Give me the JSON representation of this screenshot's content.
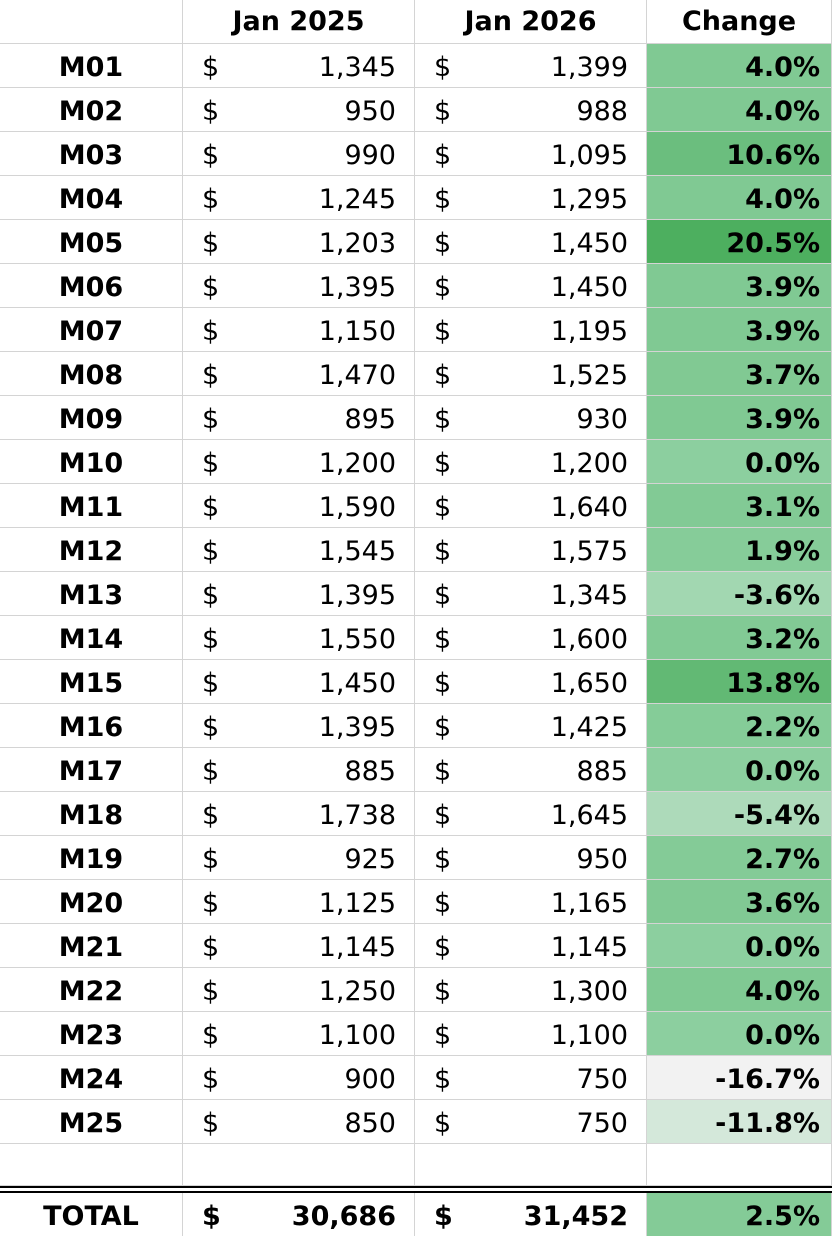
{
  "columns": {
    "name": "",
    "jan2025": "Jan 2025",
    "jan2026": "Jan 2026",
    "change": "Change"
  },
  "currency_symbol": "$",
  "rows": [
    {
      "name": "M01",
      "jan2025": "1,345",
      "jan2026": "1,399",
      "change": "4.0%",
      "change_value": 4.0
    },
    {
      "name": "M02",
      "jan2025": "950",
      "jan2026": "988",
      "change": "4.0%",
      "change_value": 4.0
    },
    {
      "name": "M03",
      "jan2025": "990",
      "jan2026": "1,095",
      "change": "10.6%",
      "change_value": 10.6
    },
    {
      "name": "M04",
      "jan2025": "1,245",
      "jan2026": "1,295",
      "change": "4.0%",
      "change_value": 4.0
    },
    {
      "name": "M05",
      "jan2025": "1,203",
      "jan2026": "1,450",
      "change": "20.5%",
      "change_value": 20.5
    },
    {
      "name": "M06",
      "jan2025": "1,395",
      "jan2026": "1,450",
      "change": "3.9%",
      "change_value": 3.9
    },
    {
      "name": "M07",
      "jan2025": "1,150",
      "jan2026": "1,195",
      "change": "3.9%",
      "change_value": 3.9
    },
    {
      "name": "M08",
      "jan2025": "1,470",
      "jan2026": "1,525",
      "change": "3.7%",
      "change_value": 3.7
    },
    {
      "name": "M09",
      "jan2025": "895",
      "jan2026": "930",
      "change": "3.9%",
      "change_value": 3.9
    },
    {
      "name": "M10",
      "jan2025": "1,200",
      "jan2026": "1,200",
      "change": "0.0%",
      "change_value": 0.0
    },
    {
      "name": "M11",
      "jan2025": "1,590",
      "jan2026": "1,640",
      "change": "3.1%",
      "change_value": 3.1
    },
    {
      "name": "M12",
      "jan2025": "1,545",
      "jan2026": "1,575",
      "change": "1.9%",
      "change_value": 1.9
    },
    {
      "name": "M13",
      "jan2025": "1,395",
      "jan2026": "1,345",
      "change": "-3.6%",
      "change_value": -3.6
    },
    {
      "name": "M14",
      "jan2025": "1,550",
      "jan2026": "1,600",
      "change": "3.2%",
      "change_value": 3.2
    },
    {
      "name": "M15",
      "jan2025": "1,450",
      "jan2026": "1,650",
      "change": "13.8%",
      "change_value": 13.8
    },
    {
      "name": "M16",
      "jan2025": "1,395",
      "jan2026": "1,425",
      "change": "2.2%",
      "change_value": 2.2
    },
    {
      "name": "M17",
      "jan2025": "885",
      "jan2026": "885",
      "change": "0.0%",
      "change_value": 0.0
    },
    {
      "name": "M18",
      "jan2025": "1,738",
      "jan2026": "1,645",
      "change": "-5.4%",
      "change_value": -5.4
    },
    {
      "name": "M19",
      "jan2025": "925",
      "jan2026": "950",
      "change": "2.7%",
      "change_value": 2.7
    },
    {
      "name": "M20",
      "jan2025": "1,125",
      "jan2026": "1,165",
      "change": "3.6%",
      "change_value": 3.6
    },
    {
      "name": "M21",
      "jan2025": "1,145",
      "jan2026": "1,145",
      "change": "0.0%",
      "change_value": 0.0
    },
    {
      "name": "M22",
      "jan2025": "1,250",
      "jan2026": "1,300",
      "change": "4.0%",
      "change_value": 4.0
    },
    {
      "name": "M23",
      "jan2025": "1,100",
      "jan2026": "1,100",
      "change": "0.0%",
      "change_value": 0.0
    },
    {
      "name": "M24",
      "jan2025": "900",
      "jan2026": "750",
      "change": "-16.7%",
      "change_value": -16.7
    },
    {
      "name": "M25",
      "jan2025": "850",
      "jan2026": "750",
      "change": "-11.8%",
      "change_value": -11.8
    }
  ],
  "total": {
    "name": "TOTAL",
    "jan2025": "30,686",
    "jan2026": "31,452",
    "change": "2.5%",
    "change_value": 2.5
  },
  "color_scale": {
    "min_value": -16.7,
    "mid_value": 0.0,
    "max_value": 20.5,
    "min_color": "#f2f2f2",
    "mid_color": "#8ccf9f",
    "max_color": "#4daf5f"
  }
}
